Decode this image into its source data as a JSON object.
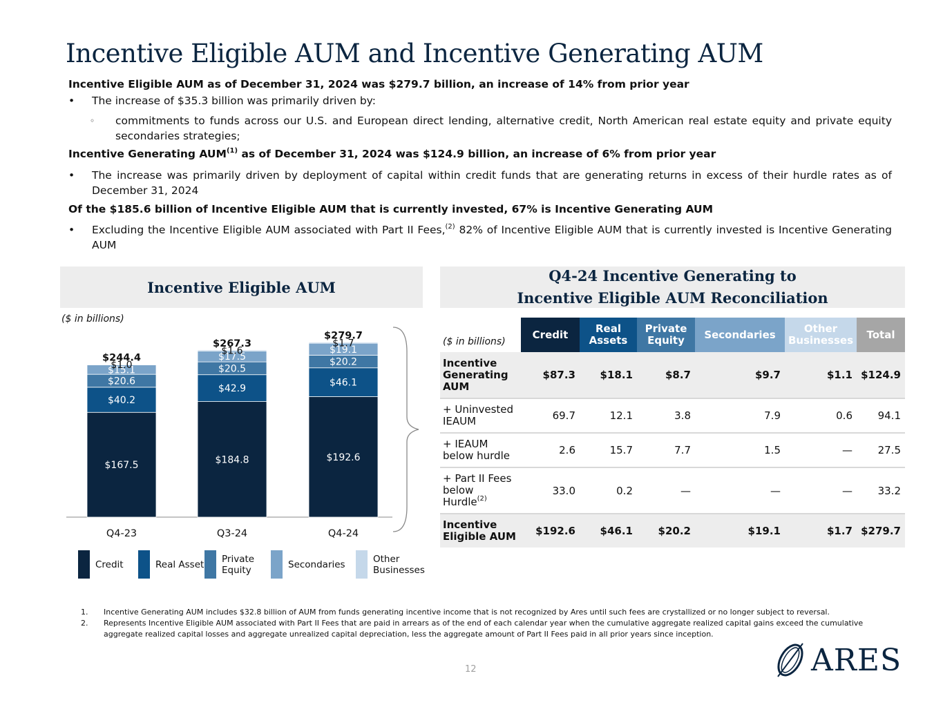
{
  "title": "Incentive Eligible AUM and Incentive Generating AUM",
  "summary": {
    "head1": "Incentive Eligible AUM as of December 31, 2024 was $279.7 billion, an increase of 14% from prior year",
    "b1": "The increase of $35.3 billion was primarily driven by:",
    "b1_sub": "commitments to funds across our U.S. and European direct lending, alternative credit, North American real estate equity and private equity secondaries strategies;",
    "head2_a": "Incentive Generating AUM",
    "head2_sup": "(1)",
    "head2_b": " as of December 31, 2024 was $124.9 billion, an increase of 6% from prior year",
    "b2": "The increase was primarily driven by deployment of capital within credit funds that are generating returns in excess of their hurdle rates as of December 31, 2024",
    "head3": "Of the $185.6 billion of Incentive Eligible AUM that is currently invested, 67% is Incentive Generating AUM",
    "b3_a": "Excluding the Incentive Eligible AUM associated with Part II Fees,",
    "b3_sup": "(2)",
    "b3_b": " 82% of Incentive Eligible AUM that is currently invested is Incentive Generating AUM",
    "bullet_mark": "•",
    "sub_mark": "◦"
  },
  "left_panel": {
    "heading": "Incentive Eligible AUM",
    "note": "($ in billions)"
  },
  "chart_data": {
    "type": "bar",
    "stacked": true,
    "title": "Incentive Eligible AUM",
    "ylabel": "($ in billions)",
    "categories": [
      "Q4-23",
      "Q3-24",
      "Q4-24"
    ],
    "totals": [
      "$244.4",
      "$267.3",
      "$279.7"
    ],
    "series": [
      {
        "name": "Credit",
        "values": [
          167.5,
          184.8,
          192.6
        ],
        "labels": [
          "$167.5",
          "$184.8",
          "$192.6"
        ],
        "color": "#0b2540",
        "label_color": "#ffffff"
      },
      {
        "name": "Real Assets",
        "values": [
          40.2,
          42.9,
          46.1
        ],
        "labels": [
          "$40.2",
          "$42.9",
          "$46.1"
        ],
        "color": "#0d5288",
        "label_color": "#ffffff"
      },
      {
        "name": "Private Equity",
        "values": [
          20.6,
          20.5,
          20.2
        ],
        "labels": [
          "$20.6",
          "$20.5",
          "$20.2"
        ],
        "color": "#3f77a4",
        "label_color": "#ffffff"
      },
      {
        "name": "Secondaries",
        "values": [
          15.1,
          17.5,
          19.1
        ],
        "labels": [
          "$15.1",
          "$17.5",
          "$19.1"
        ],
        "color": "#7ba4c9",
        "label_color": "#ffffff"
      },
      {
        "name": "Other Businesses",
        "values": [
          1.0,
          1.6,
          1.7
        ],
        "labels": [
          "$1.0",
          "$1.6",
          "$1.7"
        ],
        "color": "#c5d8ea",
        "label_color": "#111111"
      }
    ]
  },
  "legend": [
    {
      "label": "Credit",
      "color": "#0b2540"
    },
    {
      "label": "Real Assets",
      "color": "#0d5288"
    },
    {
      "label": "Private Equity",
      "color": "#3f77a4"
    },
    {
      "label": "Secondaries",
      "color": "#7ba4c9"
    },
    {
      "label": "Other Businesses",
      "color": "#c5d8ea"
    }
  ],
  "right_panel": {
    "heading_line1": "Q4-24 Incentive Generating to",
    "heading_line2": "Incentive Eligible AUM Reconciliation"
  },
  "table": {
    "note": "($ in billions)",
    "columns": [
      {
        "label": "Credit",
        "color": "#0b2540"
      },
      {
        "label": "Real Assets",
        "color": "#0d5288"
      },
      {
        "label": "Private Equity",
        "color": "#3f77a4"
      },
      {
        "label": "Secondaries",
        "color": "#7ba4c9"
      },
      {
        "label": "Other Businesses",
        "color": "#c5d8ea"
      },
      {
        "label": "Total",
        "color": "#a6a6a6"
      }
    ],
    "rows": [
      {
        "label": "Incentive Generating AUM",
        "sup": "",
        "values": [
          "$87.3",
          "$18.1",
          "$8.7",
          "$9.7",
          "$1.1",
          "$124.9"
        ]
      },
      {
        "label": "+ Uninvested IEAUM",
        "sup": "",
        "values": [
          "69.7",
          "12.1",
          "3.8",
          "7.9",
          "0.6",
          "94.1"
        ]
      },
      {
        "label": "+ IEAUM below hurdle",
        "sup": "",
        "values": [
          "2.6",
          "15.7",
          "7.7",
          "1.5",
          "—",
          "27.5"
        ]
      },
      {
        "label": " + Part II Fees below Hurdle",
        "sup": "(2)",
        "values": [
          "33.0",
          "0.2",
          "—",
          "—",
          "—",
          "33.2"
        ]
      },
      {
        "label": "Incentive Eligible AUM",
        "sup": "",
        "values": [
          "$192.6",
          "$46.1",
          "$20.2",
          "$19.1",
          "$1.7",
          "$279.7"
        ]
      }
    ]
  },
  "footnotes": [
    {
      "num": "1.",
      "text": "Incentive Generating AUM includes $32.8 billion of AUM from funds generating incentive income that is not recognized by Ares until such fees are crystallized or no longer subject to reversal."
    },
    {
      "num": "2.",
      "text": "Represents Incentive Eligible AUM associated with Part II Fees that are paid in arrears as of the end of each calendar year when the cumulative aggregate realized capital gains exceed the cumulative aggregate realized capital losses and aggregate unrealized capital depreciation, less the aggregate amount of Part II Fees paid in all prior years since inception."
    }
  ],
  "page_number": "12",
  "logo_text": "ARES",
  "colors": {
    "navy": "#0b2540",
    "panel_bg": "#ededed"
  }
}
